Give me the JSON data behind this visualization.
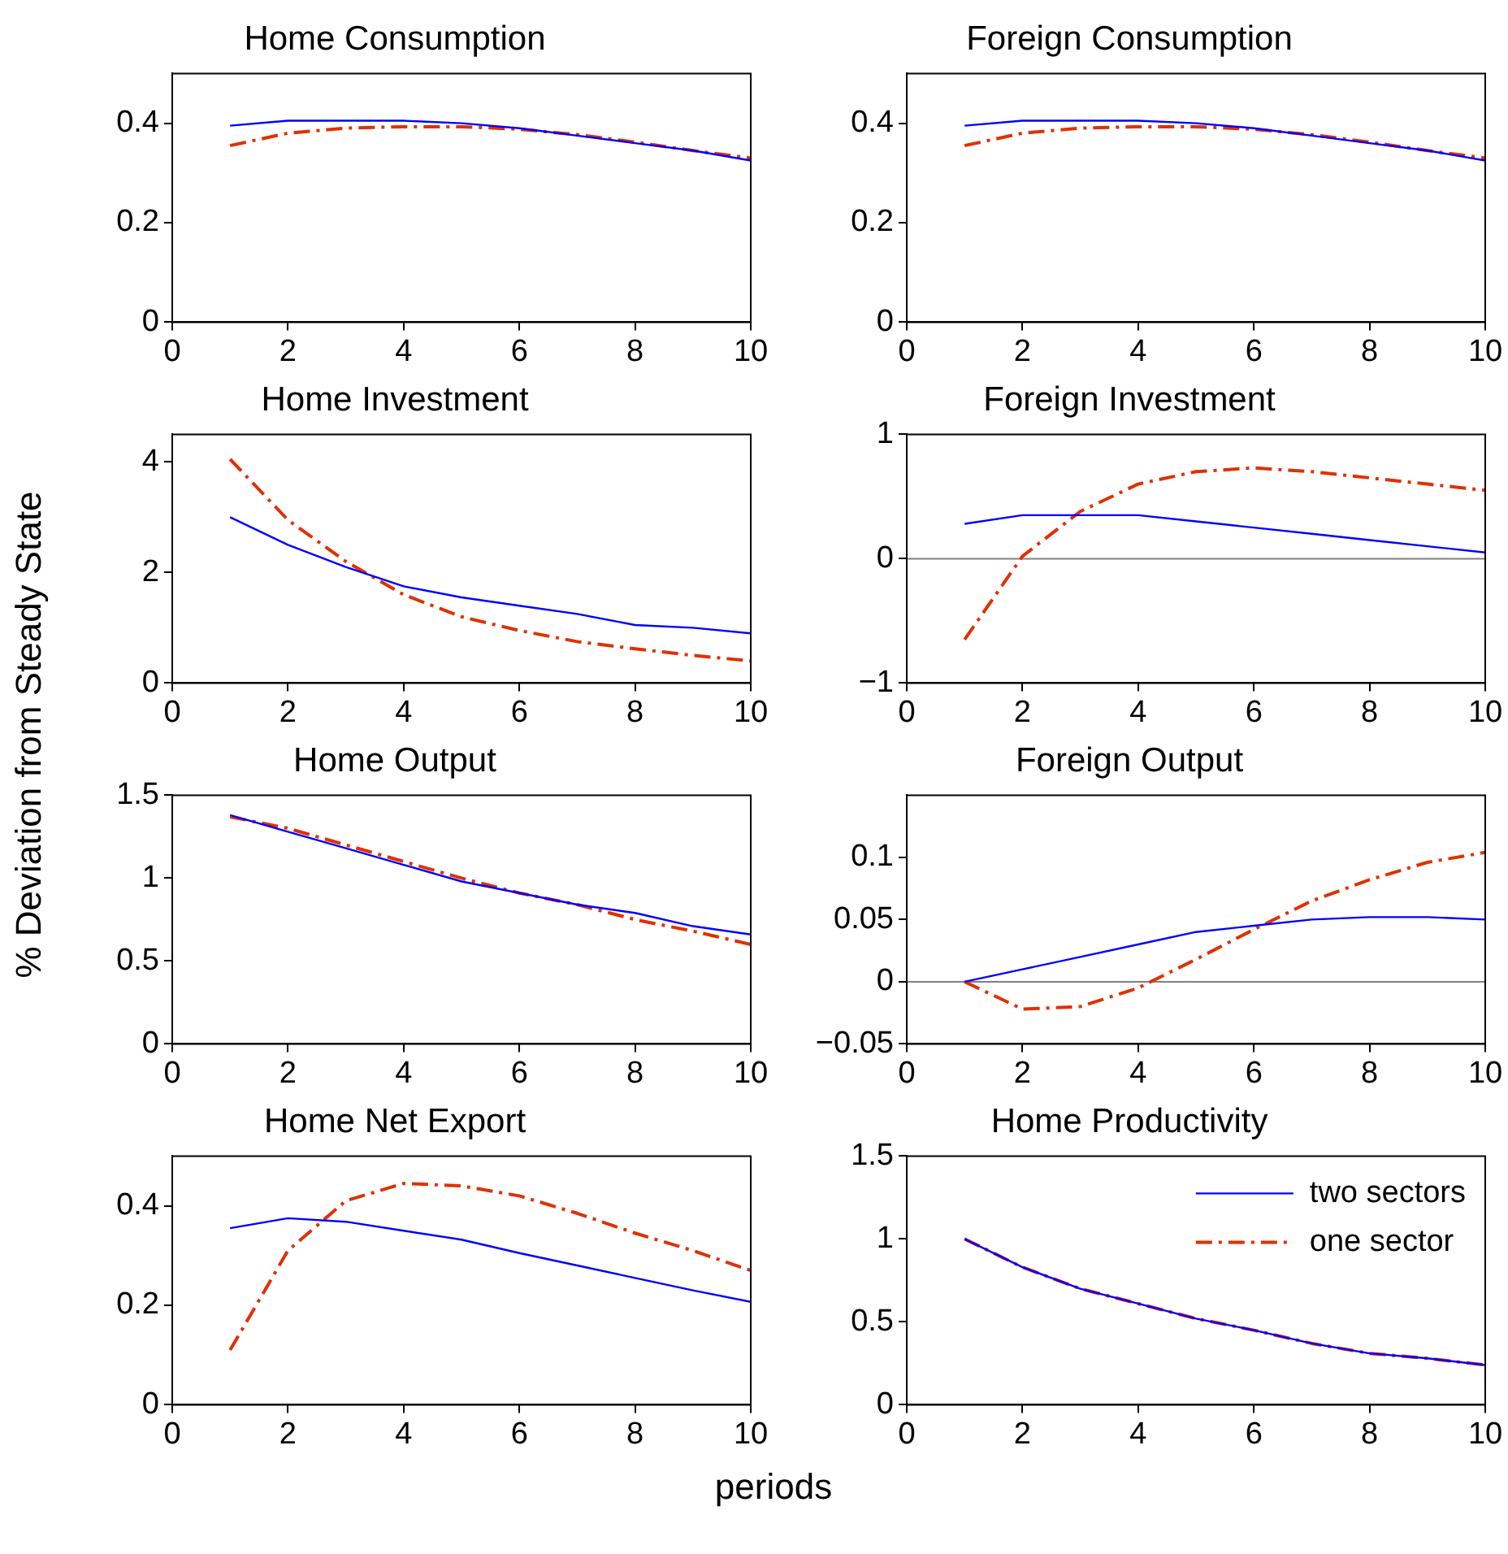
{
  "chart_data": [
    {
      "type": "line",
      "title": "Home Consumption",
      "ylabel": "% Deviation from Steady State",
      "x": [
        1,
        2,
        3,
        4,
        5,
        6,
        7,
        8,
        9,
        10
      ],
      "xlim": [
        0,
        10
      ],
      "xticks": [
        0,
        2,
        4,
        6,
        8,
        10
      ],
      "ylim": [
        0,
        0.5
      ],
      "yticks": [
        0,
        0.2,
        0.4
      ],
      "grid": false,
      "legend": false,
      "series": [
        {
          "color": "#0000ff",
          "line_style": "solid",
          "values": [
            0.395,
            0.405,
            0.405,
            0.405,
            0.4,
            0.39,
            0.375,
            0.36,
            0.345,
            0.325
          ]
        },
        {
          "color": "#e03000",
          "line_style": "dashed",
          "values": [
            0.355,
            0.38,
            0.39,
            0.393,
            0.393,
            0.388,
            0.377,
            0.362,
            0.345,
            0.33
          ]
        }
      ]
    },
    {
      "type": "line",
      "title": "Foreign Consumption",
      "x": [
        1,
        2,
        3,
        4,
        5,
        6,
        7,
        8,
        9,
        10
      ],
      "xlim": [
        0,
        10
      ],
      "xticks": [
        0,
        2,
        4,
        6,
        8,
        10
      ],
      "ylim": [
        0,
        0.5
      ],
      "yticks": [
        0,
        0.2,
        0.4
      ],
      "grid": false,
      "legend": false,
      "series": [
        {
          "color": "#0000ff",
          "line_style": "solid",
          "values": [
            0.395,
            0.405,
            0.405,
            0.405,
            0.4,
            0.39,
            0.375,
            0.36,
            0.345,
            0.325
          ]
        },
        {
          "color": "#e03000",
          "line_style": "dashed",
          "values": [
            0.355,
            0.38,
            0.39,
            0.393,
            0.393,
            0.388,
            0.377,
            0.362,
            0.345,
            0.33
          ]
        }
      ]
    },
    {
      "type": "line",
      "title": "Home Investment",
      "x": [
        1,
        2,
        3,
        4,
        5,
        6,
        7,
        8,
        9,
        10
      ],
      "xlim": [
        0,
        10
      ],
      "xticks": [
        0,
        2,
        4,
        6,
        8,
        10
      ],
      "ylim": [
        0,
        4.5
      ],
      "yticks": [
        0,
        2,
        4
      ],
      "grid": false,
      "legend": false,
      "series": [
        {
          "color": "#0000ff",
          "line_style": "solid",
          "values": [
            3.0,
            2.5,
            2.1,
            1.75,
            1.55,
            1.4,
            1.25,
            1.05,
            1.0,
            0.9
          ]
        },
        {
          "color": "#e03000",
          "line_style": "dashed",
          "values": [
            4.05,
            2.95,
            2.2,
            1.6,
            1.2,
            0.95,
            0.75,
            0.62,
            0.5,
            0.4
          ]
        }
      ]
    },
    {
      "type": "line",
      "title": "Foreign Investment",
      "x": [
        1,
        2,
        3,
        4,
        5,
        6,
        7,
        8,
        9,
        10
      ],
      "xlim": [
        0,
        10
      ],
      "xticks": [
        0,
        2,
        4,
        6,
        8,
        10
      ],
      "ylim": [
        -1,
        1
      ],
      "yticks": [
        -1,
        0,
        1
      ],
      "grid": false,
      "legend": false,
      "ref_lines": [
        {
          "axis": "y",
          "value": 0,
          "color": "#808080"
        }
      ],
      "series": [
        {
          "color": "#0000ff",
          "line_style": "solid",
          "values": [
            0.28,
            0.35,
            0.35,
            0.35,
            0.3,
            0.25,
            0.2,
            0.15,
            0.1,
            0.05
          ]
        },
        {
          "color": "#e03000",
          "line_style": "dashed",
          "values": [
            -0.65,
            0.02,
            0.38,
            0.6,
            0.7,
            0.73,
            0.7,
            0.65,
            0.6,
            0.55
          ]
        }
      ]
    },
    {
      "type": "line",
      "title": "Home Output",
      "x": [
        1,
        2,
        3,
        4,
        5,
        6,
        7,
        8,
        9,
        10
      ],
      "xlim": [
        0,
        10
      ],
      "xticks": [
        0,
        2,
        4,
        6,
        8,
        10
      ],
      "ylim": [
        0,
        1.5
      ],
      "yticks": [
        0,
        0.5,
        1,
        1.5
      ],
      "grid": false,
      "legend": false,
      "series": [
        {
          "color": "#0000ff",
          "line_style": "solid",
          "values": [
            1.38,
            1.28,
            1.18,
            1.08,
            0.98,
            0.91,
            0.84,
            0.79,
            0.71,
            0.66
          ]
        },
        {
          "color": "#e03000",
          "line_style": "dashed",
          "values": [
            1.37,
            1.3,
            1.2,
            1.1,
            1.0,
            0.91,
            0.84,
            0.75,
            0.68,
            0.6
          ]
        }
      ]
    },
    {
      "type": "line",
      "title": "Foreign Output",
      "x": [
        1,
        2,
        3,
        4,
        5,
        6,
        7,
        8,
        9,
        10
      ],
      "xlim": [
        0,
        10
      ],
      "xticks": [
        0,
        2,
        4,
        6,
        8,
        10
      ],
      "ylim": [
        -0.05,
        0.15
      ],
      "yticks": [
        -0.05,
        0,
        0.05,
        0.1
      ],
      "grid": false,
      "legend": false,
      "ref_lines": [
        {
          "axis": "y",
          "value": 0,
          "color": "#808080"
        }
      ],
      "series": [
        {
          "color": "#0000ff",
          "line_style": "solid",
          "values": [
            0,
            0.01,
            0.02,
            0.03,
            0.04,
            0.045,
            0.05,
            0.052,
            0.052,
            0.05
          ]
        },
        {
          "color": "#e03000",
          "line_style": "dashed",
          "values": [
            0,
            -0.022,
            -0.02,
            -0.005,
            0.018,
            0.042,
            0.065,
            0.082,
            0.096,
            0.104
          ]
        }
      ]
    },
    {
      "type": "line",
      "title": "Home Net Export",
      "x": [
        1,
        2,
        3,
        4,
        5,
        6,
        7,
        8,
        9,
        10
      ],
      "xlim": [
        0,
        10
      ],
      "xticks": [
        0,
        2,
        4,
        6,
        8,
        10
      ],
      "ylim": [
        0,
        0.5
      ],
      "yticks": [
        0,
        0.2,
        0.4
      ],
      "grid": false,
      "legend": false,
      "series": [
        {
          "color": "#0000ff",
          "line_style": "solid",
          "values": [
            0.355,
            0.375,
            0.368,
            0.35,
            0.332,
            0.305,
            0.28,
            0.255,
            0.23,
            0.207
          ]
        },
        {
          "color": "#e03000",
          "line_style": "dashed",
          "values": [
            0.11,
            0.31,
            0.41,
            0.445,
            0.44,
            0.42,
            0.385,
            0.345,
            0.31,
            0.27
          ]
        }
      ]
    },
    {
      "type": "line",
      "title": "Home Productivity",
      "xlabel": "periods",
      "x": [
        1,
        2,
        3,
        4,
        5,
        6,
        7,
        8,
        9,
        10
      ],
      "xlim": [
        0,
        10
      ],
      "xticks": [
        0,
        2,
        4,
        6,
        8,
        10
      ],
      "ylim": [
        0,
        1.5
      ],
      "yticks": [
        0,
        0.5,
        1,
        1.5
      ],
      "grid": false,
      "legend": "top right",
      "series": [
        {
          "name": "two sectors",
          "color": "#0000ff",
          "line_style": "solid",
          "values": [
            1.0,
            0.83,
            0.7,
            0.61,
            0.52,
            0.45,
            0.37,
            0.31,
            0.28,
            0.24
          ]
        },
        {
          "name": "one sector",
          "color": "#e03000",
          "line_style": "dashed",
          "values": [
            1.0,
            0.83,
            0.7,
            0.61,
            0.52,
            0.45,
            0.37,
            0.31,
            0.28,
            0.24
          ]
        }
      ]
    }
  ]
}
